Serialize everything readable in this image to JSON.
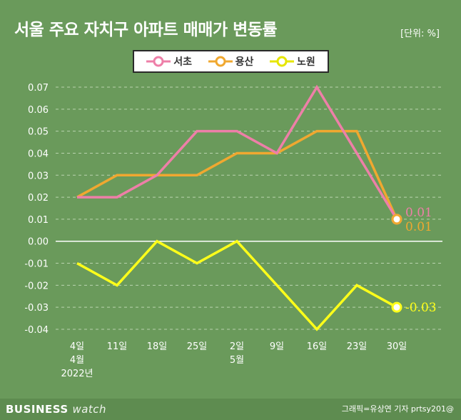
{
  "title": "서울 주요 자치구 아파트 매매가 변동률",
  "unit": "[단위: %]",
  "footer": {
    "brand_main": "BUSINESS",
    "brand_sub": "watch",
    "credit": "그래픽=유상연 기자 prtsy201@"
  },
  "chart_data": {
    "type": "line",
    "categories": [
      "4일",
      "11일",
      "18일",
      "25일",
      "2일",
      "9일",
      "16일",
      "23일",
      "30일"
    ],
    "category_sublabels": [
      [
        "4월",
        "2022년"
      ],
      [],
      [],
      [],
      [
        "5월"
      ],
      [],
      [],
      [],
      []
    ],
    "ylim": [
      -0.04,
      0.07
    ],
    "yticks": [
      "0.07",
      "0.06",
      "0.05",
      "0.04",
      "0.03",
      "0.02",
      "0.01",
      "0.00",
      "-0.01",
      "-0.02",
      "-0.03",
      "-0.04"
    ],
    "ytick_values": [
      0.07,
      0.06,
      0.05,
      0.04,
      0.03,
      0.02,
      0.01,
      0.0,
      -0.01,
      -0.02,
      -0.03,
      -0.04
    ],
    "series": [
      {
        "name": "서초",
        "color": "#ee7fa8",
        "values": [
          0.02,
          0.02,
          0.03,
          0.05,
          0.05,
          0.04,
          0.07,
          0.04,
          0.01
        ],
        "end_label": "0.01"
      },
      {
        "name": "용산",
        "color": "#f0a830",
        "values": [
          0.02,
          0.03,
          0.03,
          0.03,
          0.04,
          0.04,
          0.05,
          0.05,
          0.01
        ],
        "end_label": "0.01"
      },
      {
        "name": "노원",
        "color": "#ffff1a",
        "values": [
          -0.01,
          -0.02,
          0.0,
          -0.01,
          0.0,
          -0.02,
          -0.04,
          -0.02,
          -0.03
        ],
        "end_label": "-0.03"
      }
    ],
    "grid": true,
    "legend": "top-center"
  }
}
